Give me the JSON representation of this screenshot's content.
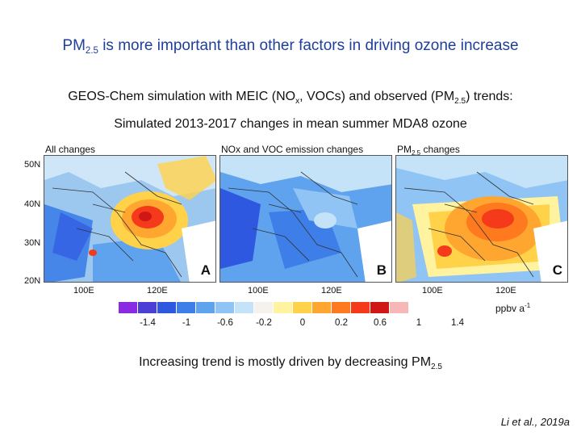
{
  "title": {
    "prefix": "PM",
    "sub": "2.5",
    "suffix": " is more important than other factors in driving ozone increase"
  },
  "line1": {
    "a": "GEOS-Chem simulation with MEIC (NO",
    "sub1": "x",
    "b": ", VOCs) and observed (PM",
    "sub2": "2.5",
    "c": ") trends:"
  },
  "line2": "Simulated 2013-2017 changes in mean summer MDA8 ozone",
  "panels": [
    {
      "label": "All changes",
      "letter": "A"
    },
    {
      "label": "NOx and VOC emission changes",
      "letter": "B"
    },
    {
      "label_prefix": "PM",
      "label_sub": "2.5",
      "label_suffix": " changes",
      "letter": "C"
    }
  ],
  "lat_labels": [
    "50N",
    "40N",
    "30N",
    "20N"
  ],
  "lon_labels": [
    "100E",
    "120E",
    "100E",
    "120E",
    "100E",
    "120E"
  ],
  "colorbar": {
    "colors": [
      "#8a2be2",
      "#4b3fd6",
      "#2f58e0",
      "#3d7ee8",
      "#5fa2ee",
      "#8fc4f4",
      "#c4e2f8",
      "#f5f2ee",
      "#fff3a0",
      "#ffd24a",
      "#ffa630",
      "#ff7a1f",
      "#f43a1a",
      "#d11616",
      "#f7b7b7"
    ],
    "ticks": [
      "-1.4",
      "-1",
      "-0.6",
      "-0.2",
      "0",
      "0.2",
      "0.6",
      "1",
      "1.4"
    ],
    "unit": "ppbv a",
    "unit_sup": "-1"
  },
  "caption": {
    "text": "Increasing trend is mostly driven by decreasing PM",
    "sub": "2.5"
  },
  "citation": "Li et al., 2019a"
}
